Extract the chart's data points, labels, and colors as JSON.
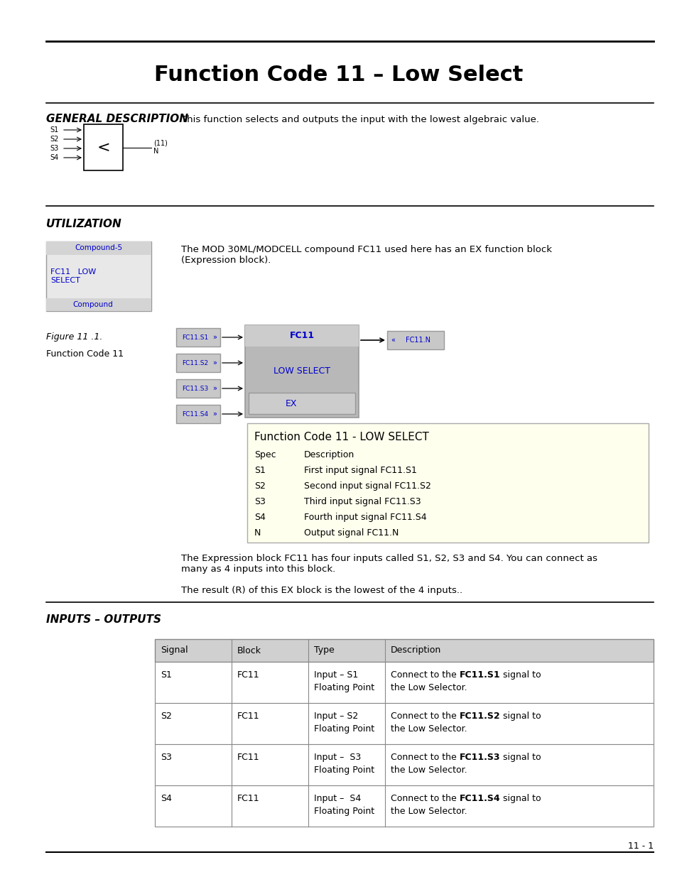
{
  "title": "Function Code 11 – Low Select",
  "page_bg": "#ffffff",
  "section1_title": "GENERAL DESCRIPTION",
  "section1_text": "This function selects and outputs the input with the lowest algebraic value.",
  "section2_title": "UTILIZATION",
  "utilization_text": "The MOD 30ML/MODCELL compound FC11 used here has an EX function block\n(Expression block).",
  "figure_label": "Figure 11 .1.",
  "figure_sublabel": "Function Code 11",
  "expression_text1": "The Expression block FC11 has four inputs called S1, S2, S3 and S4. You can connect as\nmany as 4 inputs into this block.",
  "expression_text2": "The result (R) of this EX block is the lowest of the 4 inputs..",
  "section3_title": "INPUTS – OUTPUTS",
  "table_headers": [
    "Signal",
    "Block",
    "Type",
    "Description"
  ],
  "table_rows": [
    [
      "S1",
      "FC11",
      "Input – S1\nFloating Point",
      "Connect to the FC11.S1 signal to\nthe Low Selector."
    ],
    [
      "S2",
      "FC11",
      "Input – S2\nFloating Point",
      "Connect to the FC11.S2 signal to\nthe Low Selector."
    ],
    [
      "S3",
      "FC11",
      "Input –  S3\nFloating Point",
      "Connect to the FC11.S3 signal to\nthe Low Selector."
    ],
    [
      "S4",
      "FC11",
      "Input –  S4\nFloating Point",
      "Connect to the FC11.S4 signal to\nthe Low Selector."
    ]
  ],
  "bold_parts": [
    [
      [
        "Connect to the ",
        false
      ],
      [
        "FC11.S1",
        true
      ],
      [
        " signal to",
        false
      ]
    ],
    [
      [
        "Connect to the ",
        false
      ],
      [
        "FC11.S2",
        true
      ],
      [
        " signal to",
        false
      ]
    ],
    [
      [
        "Connect to the ",
        false
      ],
      [
        "FC11.S3",
        true
      ],
      [
        " signal to",
        false
      ]
    ],
    [
      [
        "Connect to the ",
        false
      ],
      [
        "FC11.S4",
        true
      ],
      [
        " signal to",
        false
      ]
    ]
  ],
  "footer_text": "11 - 1",
  "compound_text_color": "#0000cc",
  "yellowgreen_bg": "#ffffee"
}
